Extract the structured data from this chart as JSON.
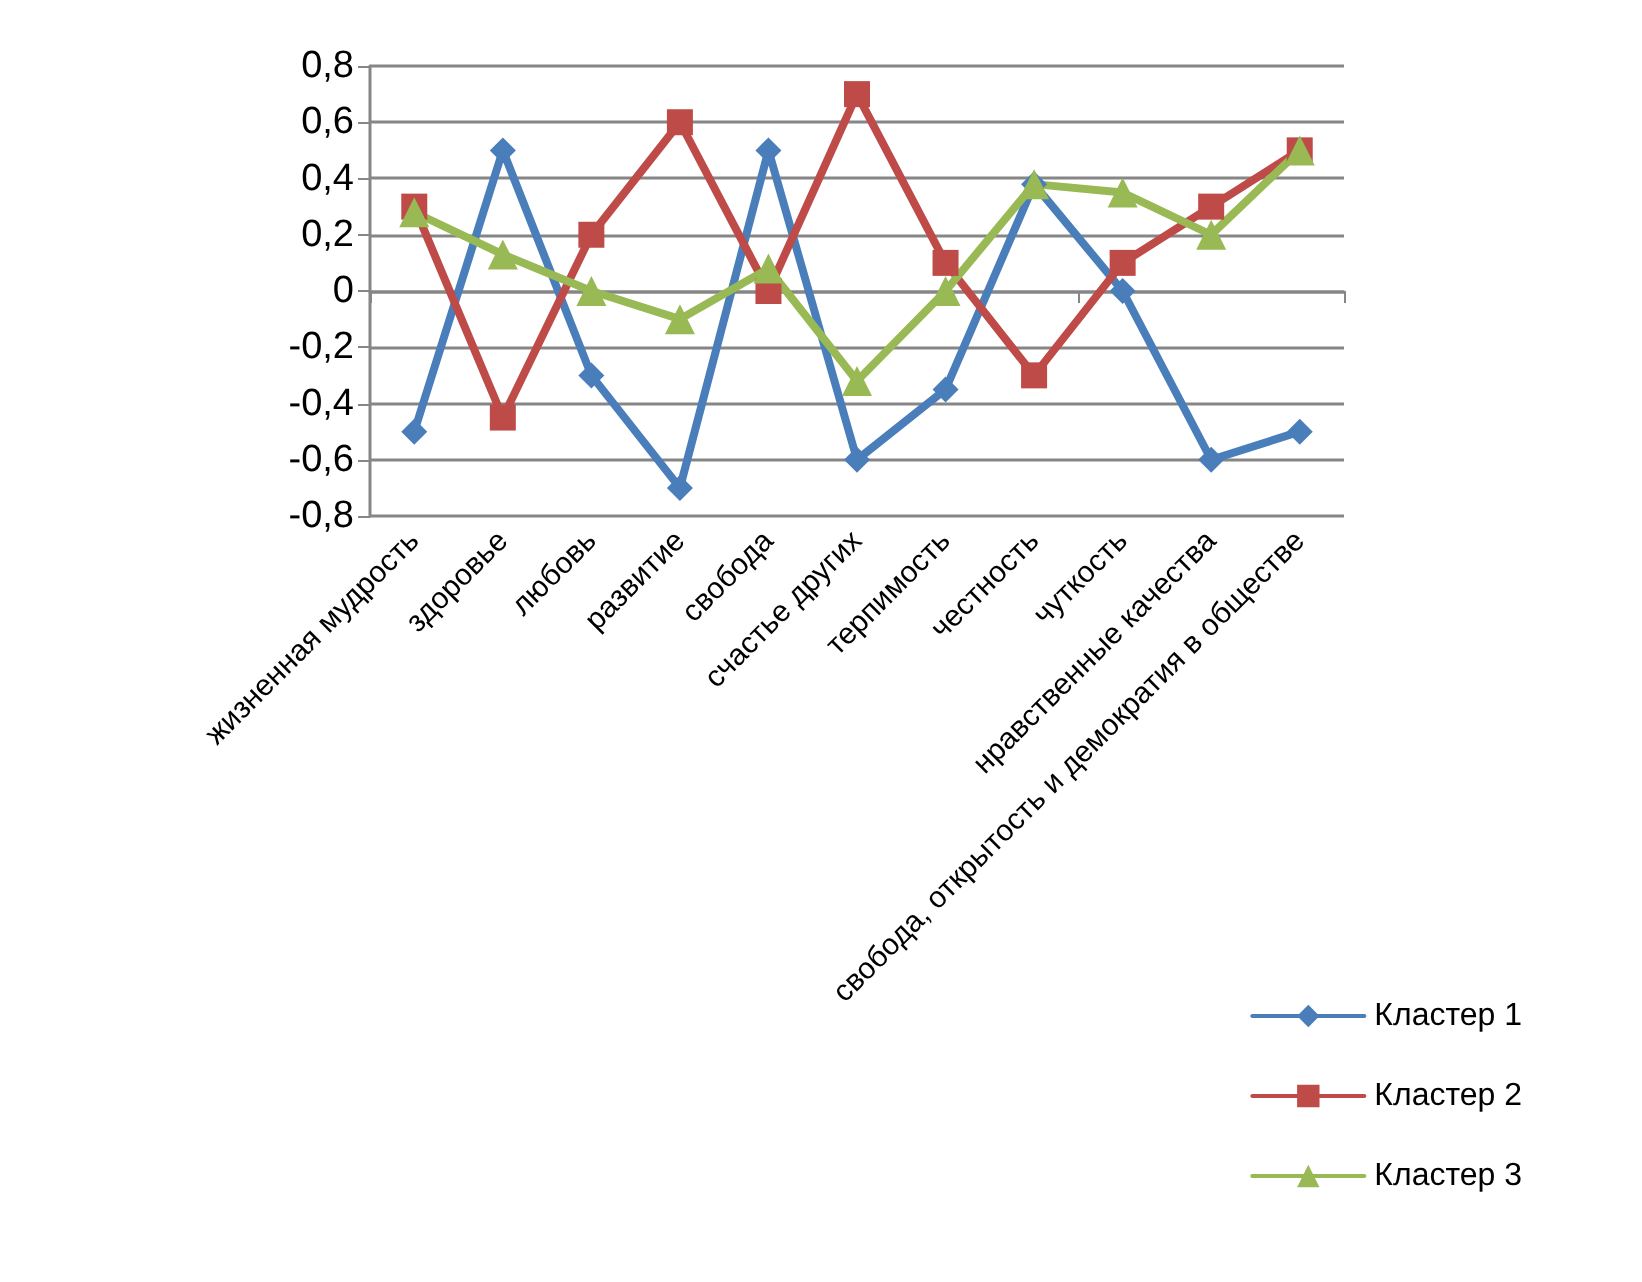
{
  "chart_data": {
    "type": "line",
    "categories": [
      "жизненная мудрость",
      "здоровье",
      "любовь",
      "развитие",
      "свобода",
      "счастье других",
      "терпимость",
      "честность",
      "чуткость",
      "нравственные качества",
      "свобода, открытость и демократия в обществе"
    ],
    "series": [
      {
        "name": "Кластер 1",
        "color": "#4a7ebb",
        "marker": "diamond",
        "values": [
          -0.5,
          0.5,
          -0.3,
          -0.7,
          0.5,
          -0.6,
          -0.35,
          0.38,
          0,
          -0.6,
          -0.5
        ]
      },
      {
        "name": "Кластер 2",
        "color": "#be4b48",
        "marker": "square",
        "values": [
          0.3,
          -0.45,
          0.2,
          0.6,
          0,
          0.7,
          0.1,
          -0.3,
          0.1,
          0.3,
          0.5
        ]
      },
      {
        "name": "Кластер 3",
        "color": "#98b954",
        "marker": "triangle",
        "values": [
          0.28,
          0.13,
          0,
          -0.1,
          0.08,
          -0.32,
          0,
          0.38,
          0.35,
          0.2,
          0.5
        ]
      }
    ],
    "ylim": [
      -0.8,
      0.8
    ],
    "yticks": [
      {
        "value": -0.8,
        "label": "-0,8"
      },
      {
        "value": -0.6,
        "label": "-0,6"
      },
      {
        "value": -0.4,
        "label": "-0,4"
      },
      {
        "value": -0.2,
        "label": "-0,2"
      },
      {
        "value": 0,
        "label": "0"
      },
      {
        "value": 0.2,
        "label": "0,2"
      },
      {
        "value": 0.4,
        "label": "0,4"
      },
      {
        "value": 0.6,
        "label": "0,6"
      },
      {
        "value": 0.8,
        "label": "0,8"
      }
    ],
    "grid": "y",
    "legend": "bottom right",
    "line_style": "solid"
  }
}
